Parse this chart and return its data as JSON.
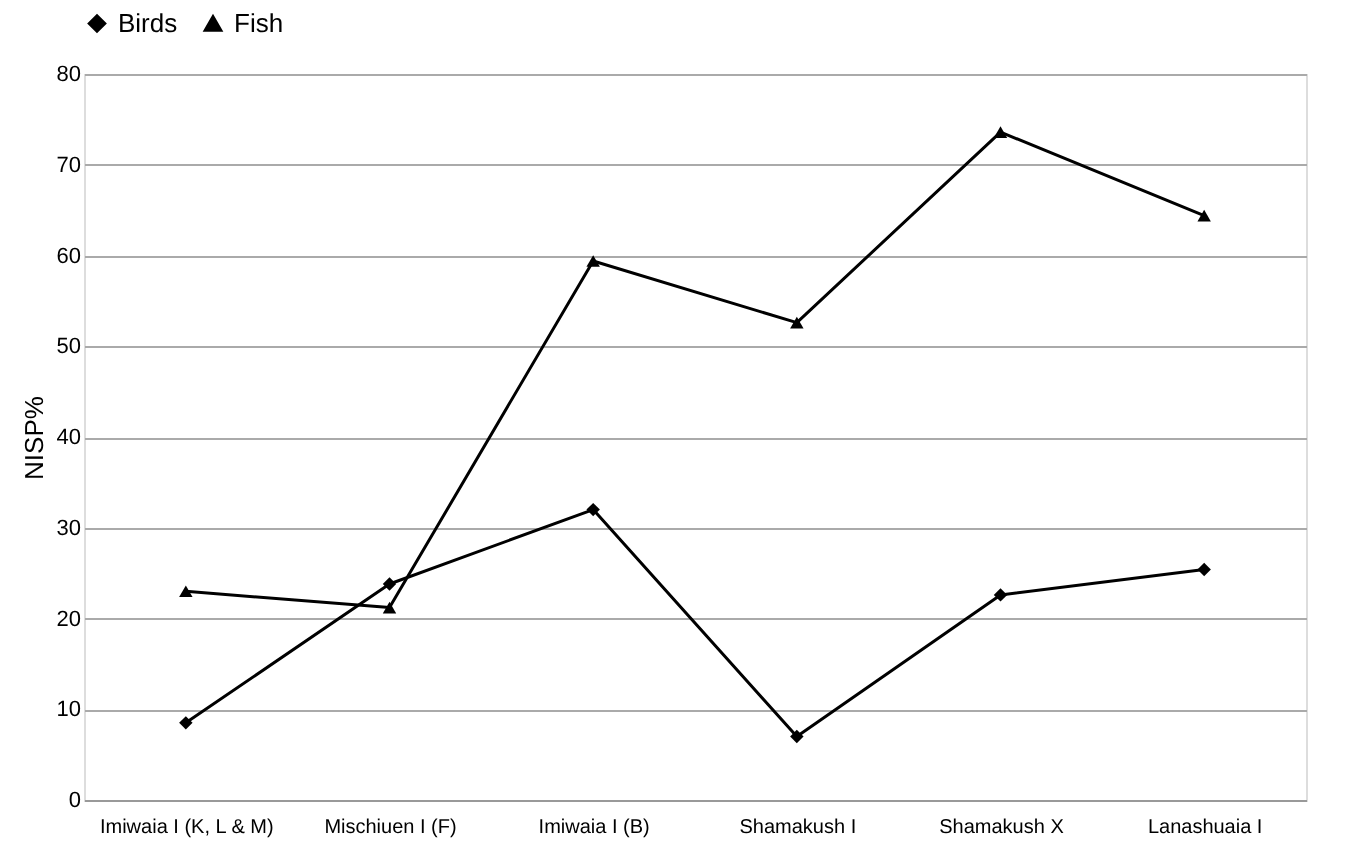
{
  "chart_data": {
    "type": "line",
    "ylabel": "NISP%",
    "categories": [
      "Imiwaia I (K, L & M)",
      "Mischiuen I (F)",
      "Imiwaia I (B)",
      "Shamakush I",
      "Shamakush X",
      "Lanashuaia I"
    ],
    "series": [
      {
        "name": "Birds",
        "color": "#000000",
        "marker": "diamond",
        "values": [
          8.5,
          23.8,
          32,
          7,
          22.6,
          25.4
        ]
      },
      {
        "name": "Fish",
        "color": "#000000",
        "marker": "triangle",
        "values": [
          23,
          21.2,
          59.4,
          52.6,
          73.6,
          64.4
        ]
      }
    ],
    "ylim": [
      0,
      80
    ],
    "yticks": [
      0,
      10,
      20,
      30,
      40,
      50,
      60,
      70,
      80
    ],
    "grid": "y",
    "legend": "top",
    "line_style": "solid"
  }
}
